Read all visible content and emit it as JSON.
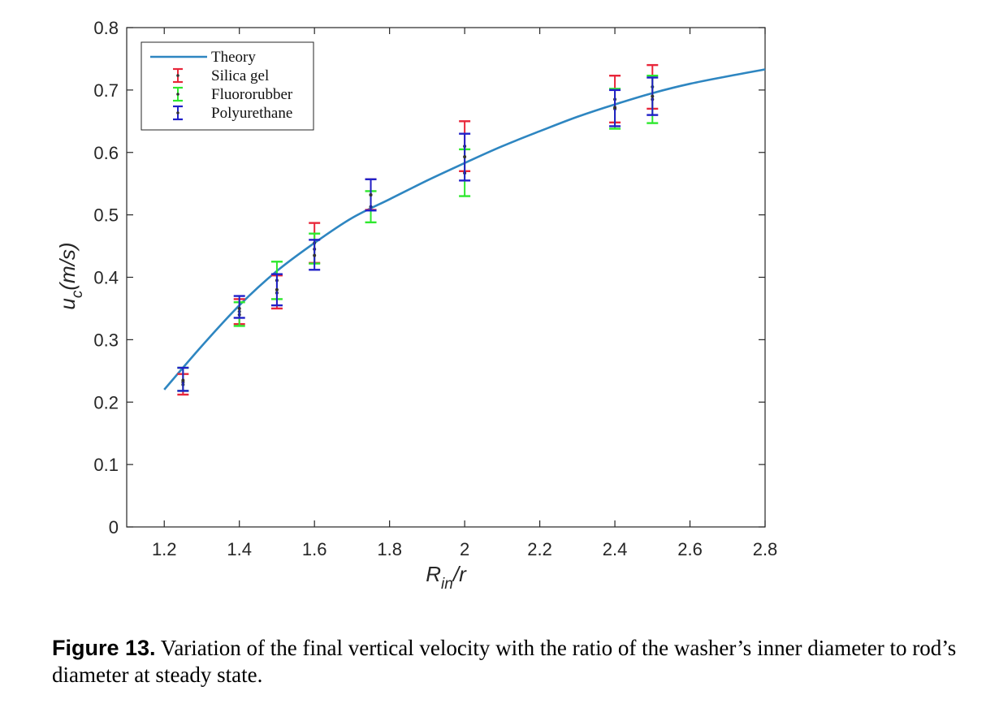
{
  "chart_data": {
    "type": "scatter",
    "xlabel": "R_in/r",
    "xlabel_main": "R",
    "xlabel_sub": "in",
    "xlabel_tail": "/r",
    "ylabel": "u_c(m/s)",
    "ylabel_main": "u",
    "ylabel_sub": "c",
    "ylabel_tail": "(m/s)",
    "xlim": [
      1.1,
      2.8
    ],
    "ylim": [
      0,
      0.8
    ],
    "xticks": [
      1.2,
      1.4,
      1.6,
      1.8,
      2,
      2.2,
      2.4,
      2.6,
      2.8
    ],
    "xtick_labels": [
      "1.2",
      "1.4",
      "1.6",
      "1.8",
      "2",
      "2.2",
      "2.4",
      "2.6",
      "2.8"
    ],
    "yticks": [
      0,
      0.1,
      0.2,
      0.3,
      0.4,
      0.5,
      0.6,
      0.7,
      0.8
    ],
    "ytick_labels": [
      "0",
      "0.1",
      "0.2",
      "0.3",
      "0.4",
      "0.5",
      "0.6",
      "0.7",
      "0.8"
    ],
    "grid": false,
    "legend_position": "top-left",
    "theory": {
      "name": "Theory",
      "color": "#2e86c1",
      "x": [
        1.2,
        1.3,
        1.4,
        1.5,
        1.6,
        1.7,
        1.8,
        1.9,
        2.0,
        2.1,
        2.2,
        2.3,
        2.4,
        2.5,
        2.6,
        2.7,
        2.8
      ],
      "y": [
        0.22,
        0.29,
        0.355,
        0.41,
        0.455,
        0.495,
        0.525,
        0.555,
        0.583,
        0.61,
        0.634,
        0.657,
        0.677,
        0.695,
        0.71,
        0.722,
        0.733
      ]
    },
    "series": [
      {
        "name": "Silica gel",
        "color": "#e8263a",
        "x": [
          1.25,
          1.4,
          1.5,
          1.6,
          1.75,
          2.0,
          2.4,
          2.5
        ],
        "y": [
          0.228,
          0.345,
          0.375,
          0.455,
          0.532,
          0.61,
          0.685,
          0.705
        ],
        "lower": [
          0.212,
          0.325,
          0.35,
          0.423,
          0.508,
          0.57,
          0.648,
          0.67
        ],
        "upper": [
          0.245,
          0.365,
          0.403,
          0.487,
          0.557,
          0.65,
          0.723,
          0.74
        ]
      },
      {
        "name": "Fluororubber",
        "color": "#2ee82e",
        "x": [
          1.25,
          1.4,
          1.5,
          1.6,
          1.75,
          2.0,
          2.4,
          2.5
        ],
        "y": [
          0.232,
          0.34,
          0.395,
          0.445,
          0.513,
          0.567,
          0.67,
          0.685
        ],
        "lower": [
          0.218,
          0.322,
          0.365,
          0.422,
          0.488,
          0.53,
          0.638,
          0.647
        ],
        "upper": [
          0.255,
          0.36,
          0.425,
          0.47,
          0.538,
          0.605,
          0.702,
          0.723
        ]
      },
      {
        "name": "Polyurethane",
        "color": "#2020c8",
        "x": [
          1.25,
          1.4,
          1.5,
          1.6,
          1.75,
          2.0,
          2.4,
          2.5
        ],
        "y": [
          0.235,
          0.35,
          0.38,
          0.435,
          0.532,
          0.593,
          0.672,
          0.69
        ],
        "lower": [
          0.218,
          0.335,
          0.355,
          0.412,
          0.507,
          0.555,
          0.642,
          0.66
        ],
        "upper": [
          0.255,
          0.37,
          0.405,
          0.46,
          0.557,
          0.63,
          0.7,
          0.72
        ]
      }
    ]
  },
  "caption": {
    "label": "Figure 13.",
    "text": " Variation of the final vertical velocity with the ratio of the washer’s inner diameter to rod’s diameter at steady state."
  }
}
